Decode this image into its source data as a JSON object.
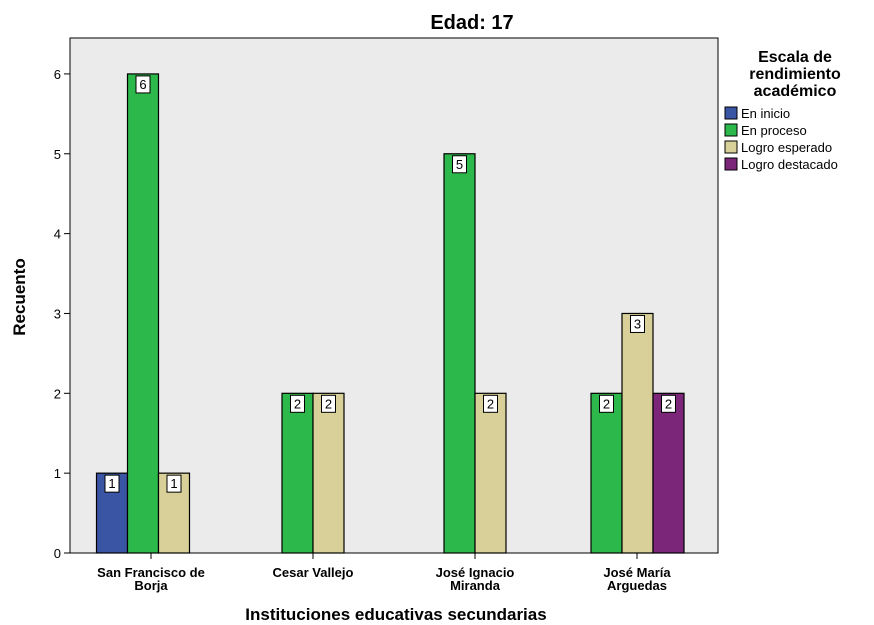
{
  "chart_data": {
    "type": "bar",
    "title": "Edad: 17",
    "xlabel": "Instituciones educativas secundarias",
    "ylabel": "Recuento",
    "ylim": [
      0,
      6.45
    ],
    "yticks": [
      0,
      1,
      2,
      3,
      4,
      5,
      6
    ],
    "grid": false,
    "categories": [
      [
        "San Francisco de",
        "Borja"
      ],
      [
        "Cesar Vallejo"
      ],
      [
        "José Ignacio",
        "Miranda"
      ],
      [
        "José María",
        "Arguedas"
      ]
    ],
    "legend": {
      "title": [
        "Escala de",
        "rendimiento",
        "académico"
      ],
      "placement": "right"
    },
    "series": [
      {
        "name": "En inicio",
        "color": "#3a55a4",
        "values": [
          1,
          null,
          null,
          null
        ]
      },
      {
        "name": "En proceso",
        "color": "#2db84b",
        "values": [
          6,
          2,
          5,
          2
        ]
      },
      {
        "name": "Logro esperado",
        "color": "#d8d098",
        "values": [
          1,
          2,
          2,
          3
        ]
      },
      {
        "name": "Logro destacado",
        "color": "#7b2679",
        "values": [
          null,
          null,
          null,
          2
        ]
      }
    ],
    "plot_background": "#ebebeb"
  }
}
